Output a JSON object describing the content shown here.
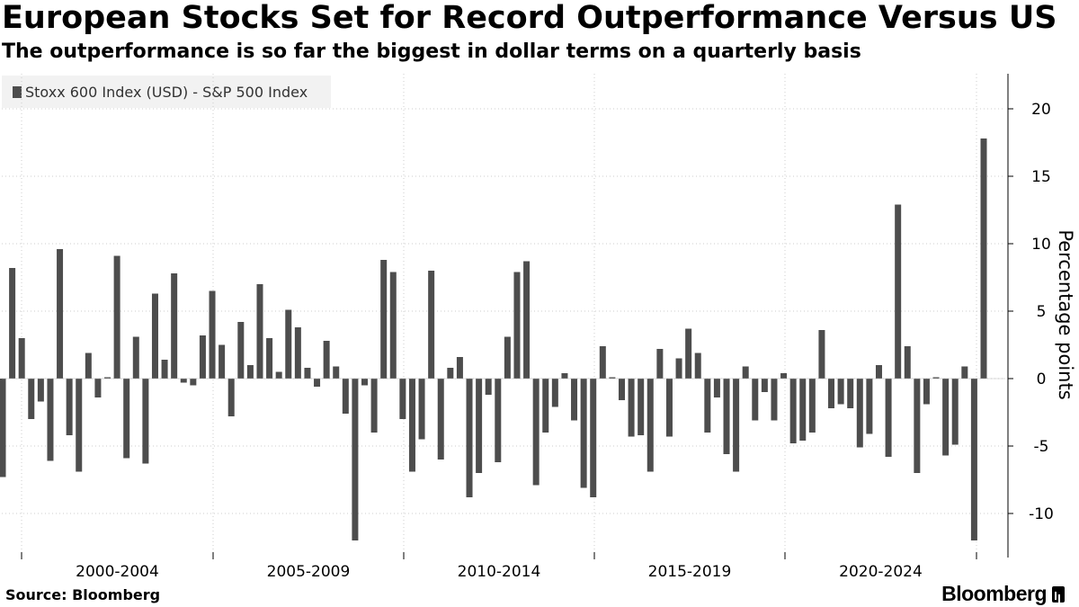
{
  "header": {
    "title": "European Stocks Set for Record Outperformance Versus US",
    "subtitle": "The outperformance is so far the biggest in dollar terms on a quarterly basis"
  },
  "footer": {
    "source": "Source: Bloomberg",
    "brand": "Bloomberg"
  },
  "colors": {
    "bar": "#4d4d4d",
    "grid": "#cccccc",
    "legend_bg": "#f2f2f2"
  },
  "chart_data": {
    "type": "bar",
    "title": "European Stocks Set for Record Outperformance Versus US",
    "subtitle": "The outperformance is so far the biggest in dollar terms on a quarterly basis",
    "xlabel": "",
    "ylabel": "Percentage points",
    "ylim": [
      -14.5,
      21
    ],
    "yticks": [
      20,
      15,
      10,
      5,
      0,
      -5,
      -10
    ],
    "grid": true,
    "legend_position": "top-left",
    "period_labels": [
      "2000-2004",
      "2005-2009",
      "2010-2014",
      "2015-2019",
      "2020-2024"
    ],
    "series": [
      {
        "name": "Stoxx 600 Index (USD) - S&P 500 Index",
        "values": [
          -7.3,
          8.2,
          3.0,
          -3.0,
          -1.7,
          -6.1,
          9.6,
          -4.2,
          -6.9,
          1.9,
          -1.4,
          0.1,
          9.1,
          -5.9,
          3.1,
          -6.3,
          6.3,
          1.4,
          7.8,
          -0.3,
          -0.5,
          3.2,
          6.5,
          2.5,
          -2.8,
          4.2,
          1.0,
          7.0,
          3.0,
          0.5,
          5.1,
          3.8,
          0.8,
          -0.6,
          2.8,
          0.9,
          -2.6,
          -12.0,
          -0.5,
          -4.0,
          8.8,
          7.9,
          -3.0,
          -6.9,
          -4.5,
          8.0,
          -6.0,
          0.8,
          1.6,
          -8.8,
          -7.0,
          -1.2,
          -6.2,
          3.1,
          7.9,
          8.7,
          -7.9,
          -4.0,
          -2.1,
          0.4,
          -3.1,
          -8.1,
          -8.8,
          2.4,
          0.1,
          -1.6,
          -4.3,
          -4.2,
          -6.9,
          2.2,
          -4.3,
          1.5,
          3.7,
          1.9,
          -4.0,
          -1.4,
          -5.6,
          -6.9,
          0.9,
          -3.1,
          -1.0,
          -3.1,
          0.4,
          -4.8,
          -4.6,
          -4.0,
          3.6,
          -2.2,
          -1.9,
          -2.2,
          -5.1,
          -4.1,
          1.0,
          -5.8,
          12.9,
          2.4,
          -7.0,
          -1.9,
          0.1,
          -5.7,
          -4.9,
          0.9,
          -12.0,
          17.8
        ]
      }
    ]
  }
}
